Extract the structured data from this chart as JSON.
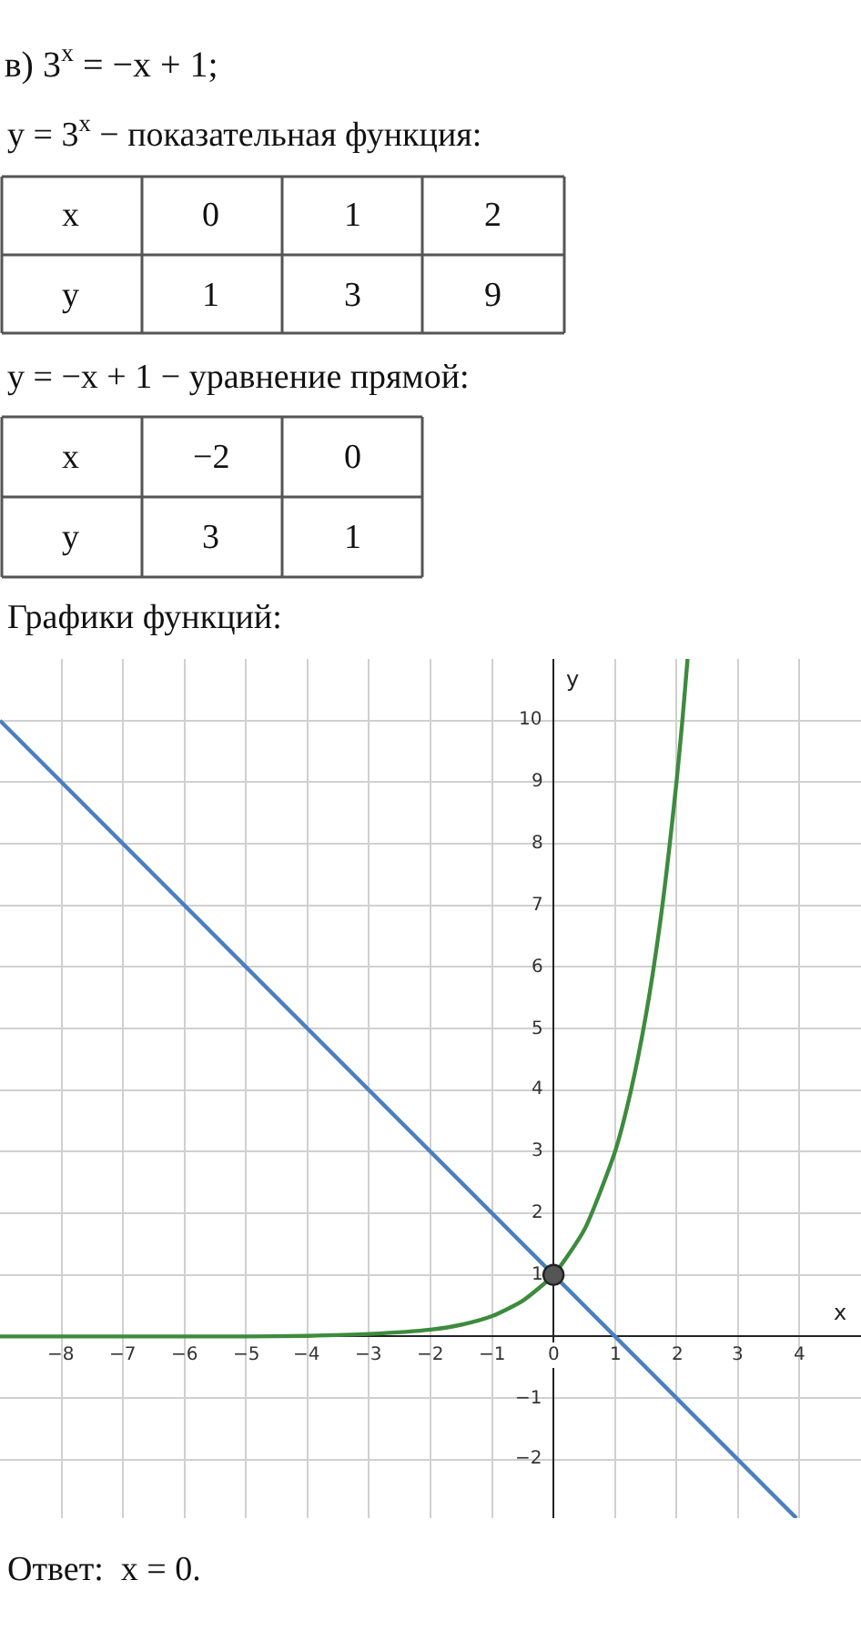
{
  "chart_data": {
    "type": "line",
    "title": "в) 3$^{x}$ = −x + 1;",
    "xlabel": "x",
    "ylabel": "y",
    "annotations": [
      "y = 3$^{x}$ − показательная функция:",
      "x",
      "0",
      "1",
      "2",
      "y",
      "1",
      "3",
      "9",
      "y = −x + 1 − уравнение прямой:",
      "x",
      "−2",
      "0",
      "y",
      "3",
      "1",
      "Графики функций:",
      "Ответ:  x = 0."
    ],
    "xlim": [
      -9,
      5
    ],
    "ylim": [
      -2.95,
      11
    ],
    "xticks": [
      -8,
      -7,
      -6,
      -5,
      -4,
      -3,
      -2,
      -1,
      0,
      1,
      2,
      3,
      4
    ],
    "yticks": [
      -2,
      -1,
      {
        "value": 0,
        "label": null
      },
      1,
      2,
      3,
      4,
      5,
      6,
      7,
      8,
      9,
      10
    ],
    "grid": true,
    "series": [
      {
        "type": "line",
        "color": "#3d8b3d",
        "x": [
          -9,
          -8,
          -7,
          -6,
          -5,
          -4,
          -3,
          -2,
          -1.5,
          -1,
          -0.5,
          0,
          0.5,
          1,
          1.25,
          1.5,
          1.75,
          2,
          2.1,
          2.18
        ],
        "values": [
          0,
          0,
          0,
          0,
          0,
          0.01,
          0.04,
          0.11,
          0.19,
          0.33,
          0.58,
          1,
          1.73,
          3,
          3.95,
          5.2,
          6.84,
          9,
          10.05,
          11
        ]
      },
      {
        "color": "#4a7fc1",
        "x": [
          -9,
          3.95
        ],
        "values": [
          10,
          -2.95
        ]
      },
      {
        "type": "scatter",
        "color": "#555555",
        "marker": "circle",
        "x": [
          0
        ],
        "values": [
          1
        ]
      }
    ]
  }
}
